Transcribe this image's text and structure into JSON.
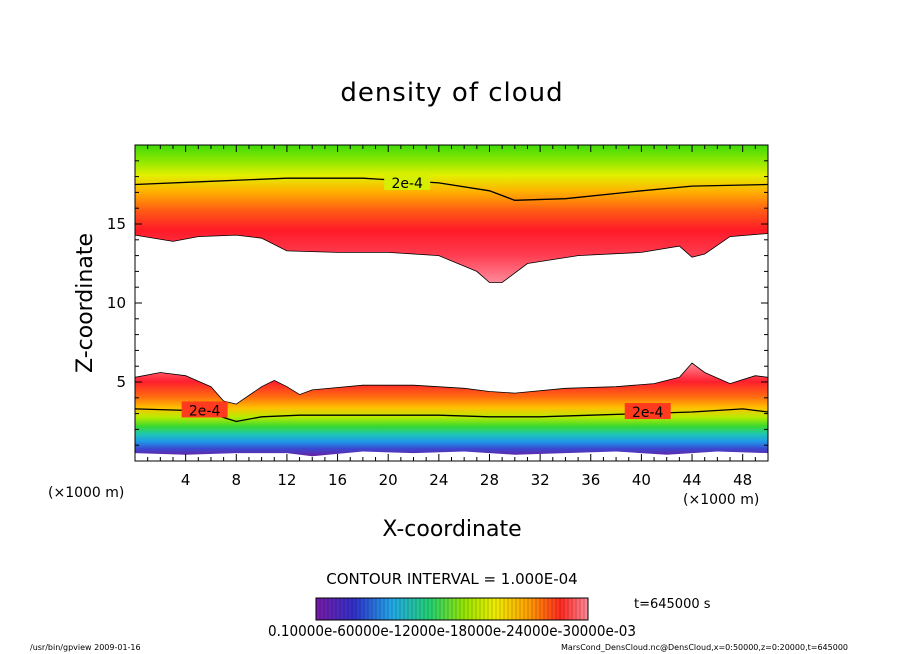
{
  "chart_data": {
    "type": "heatmap",
    "title": "density of cloud",
    "xlabel": "X-coordinate",
    "ylabel": "Z-coordinate",
    "x_unit_left": "(×1000 m)",
    "x_unit_right": "(×1000 m)",
    "xlim": [
      0,
      50
    ],
    "ylim": [
      0,
      20
    ],
    "x_ticks": [
      4,
      8,
      12,
      16,
      20,
      24,
      28,
      32,
      36,
      40,
      44,
      48
    ],
    "y_ticks": [
      5,
      10,
      15
    ],
    "contour_interval_text": "CONTOUR INTERVAL = 1.000E-04",
    "time_text": "t=645000 s",
    "colorbar_labels_text": "0.10000e-60000e-12000e-18000e-24000e-30000e-03",
    "colorbar_range": [
      0.0001,
      0.0003
    ],
    "colormap": [
      "#5b1f9a",
      "#2f52d8",
      "#22b6e8",
      "#22d48a",
      "#7fe000",
      "#e6f000",
      "#ffb400",
      "#ff4a1a",
      "#ff1f2e",
      "#ff8fa0"
    ],
    "contour_labels": [
      {
        "text": "2e-4",
        "x": 21.5,
        "z": 17.6
      },
      {
        "text": "2e-4",
        "x": 5.5,
        "z": 3.2
      },
      {
        "text": "2e-4",
        "x": 40.5,
        "z": 3.1
      }
    ],
    "upper_layer": {
      "top_contour": [
        [
          0,
          17.5
        ],
        [
          6,
          17.7
        ],
        [
          12,
          17.9
        ],
        [
          18,
          17.9
        ],
        [
          24,
          17.6
        ],
        [
          28,
          17.1
        ],
        [
          30,
          16.5
        ],
        [
          34,
          16.6
        ],
        [
          40,
          17.1
        ],
        [
          44,
          17.4
        ],
        [
          50,
          17.5
        ]
      ],
      "bottom_edge": [
        [
          0,
          14.3
        ],
        [
          3,
          13.9
        ],
        [
          5,
          14.2
        ],
        [
          8,
          14.3
        ],
        [
          10,
          14.1
        ],
        [
          12,
          13.3
        ],
        [
          16,
          13.2
        ],
        [
          20,
          13.2
        ],
        [
          24,
          13.0
        ],
        [
          27,
          12.0
        ],
        [
          28,
          11.3
        ],
        [
          29,
          11.3
        ],
        [
          31,
          12.5
        ],
        [
          35,
          13.0
        ],
        [
          40,
          13.2
        ],
        [
          43,
          13.6
        ],
        [
          44,
          12.9
        ],
        [
          45,
          13.1
        ],
        [
          47,
          14.2
        ],
        [
          50,
          14.4
        ]
      ]
    },
    "lower_layer": {
      "top_edge": [
        [
          0,
          5.3
        ],
        [
          2,
          5.6
        ],
        [
          4,
          5.4
        ],
        [
          6,
          4.7
        ],
        [
          7,
          3.8
        ],
        [
          8,
          3.6
        ],
        [
          10,
          4.7
        ],
        [
          11,
          5.1
        ],
        [
          12,
          4.7
        ],
        [
          13,
          4.2
        ],
        [
          14,
          4.5
        ],
        [
          18,
          4.8
        ],
        [
          22,
          4.8
        ],
        [
          26,
          4.6
        ],
        [
          28,
          4.4
        ],
        [
          30,
          4.3
        ],
        [
          34,
          4.6
        ],
        [
          38,
          4.7
        ],
        [
          41,
          4.9
        ],
        [
          43,
          5.3
        ],
        [
          44,
          6.2
        ],
        [
          45,
          5.6
        ],
        [
          47,
          4.9
        ],
        [
          49,
          5.4
        ],
        [
          50,
          5.3
        ]
      ],
      "contour_2e4": [
        [
          0,
          3.3
        ],
        [
          4,
          3.2
        ],
        [
          6,
          3.0
        ],
        [
          8,
          2.5
        ],
        [
          10,
          2.8
        ],
        [
          13,
          2.9
        ],
        [
          18,
          2.9
        ],
        [
          24,
          2.9
        ],
        [
          28,
          2.8
        ],
        [
          32,
          2.8
        ],
        [
          36,
          2.9
        ],
        [
          40,
          3.0
        ],
        [
          44,
          3.1
        ],
        [
          48,
          3.3
        ],
        [
          50,
          3.1
        ]
      ],
      "bottom_edge": [
        [
          0,
          0.5
        ],
        [
          4,
          0.4
        ],
        [
          8,
          0.5
        ],
        [
          12,
          0.5
        ],
        [
          14,
          0.3
        ],
        [
          18,
          0.6
        ],
        [
          22,
          0.5
        ],
        [
          26,
          0.6
        ],
        [
          30,
          0.4
        ],
        [
          34,
          0.5
        ],
        [
          38,
          0.6
        ],
        [
          42,
          0.4
        ],
        [
          46,
          0.6
        ],
        [
          50,
          0.5
        ]
      ]
    }
  },
  "footer": {
    "left": "/usr/bin/gpview   2009-01-16",
    "right": "MarsCond_DensCloud.nc@DensCloud,x=0:50000,z=0:20000,t=645000"
  }
}
